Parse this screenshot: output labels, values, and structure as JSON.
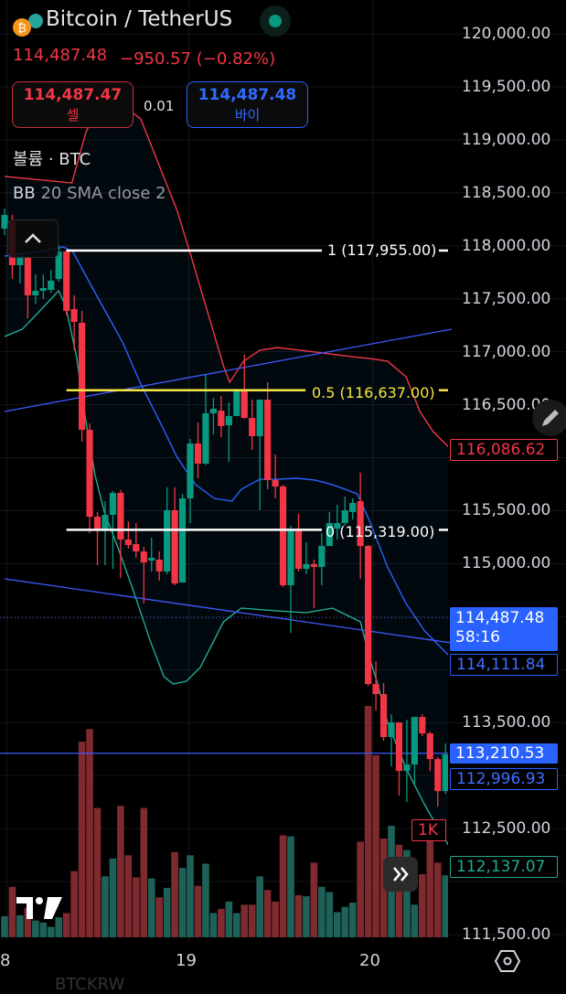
{
  "header": {
    "symbol_title": "Bitcoin / TetherUS",
    "last_price": "114,487.48",
    "change": "−950.57 (−0.82%)",
    "sell": {
      "price": "114,487.47",
      "label": "셀"
    },
    "spread": "0.01",
    "buy": {
      "price": "114,487.48",
      "label": "바이"
    },
    "market_status": "open",
    "icons": [
      "bitcoin-icon",
      "tether-icon",
      "market-open-dot-icon"
    ]
  },
  "legends": {
    "volume": "볼륨 · BTC",
    "bb_name": "BB",
    "bb_params": "20 SMA close 2"
  },
  "colors": {
    "up": "#089981",
    "down": "#f23645",
    "bb_upper": "#f23645",
    "bb_basis": "#2962ff",
    "bb_lower": "#22ab94",
    "trendline": "#3d5afe",
    "fib_1": "#ffffff",
    "fib_05": "#f5e642",
    "fib_0": "#ffffff",
    "last_price_bg": "#2962ff"
  },
  "chart_data": {
    "type": "candlestick",
    "y_axis": {
      "min": 111500,
      "max": 120000,
      "step": 500,
      "tick_labels": [
        "120,000.00",
        "119,500.00",
        "119,000.00",
        "118,500.00",
        "118,000.00",
        "117,500.00",
        "117,000.00",
        "116,500.00",
        "116,000.00",
        "115,500.00",
        "115,000.00",
        "114,500.00",
        "114,000.00",
        "113,500.00",
        "113,000.00",
        "112,500.00",
        "112,000.00",
        "111,500.00"
      ]
    },
    "x_axis": {
      "tick_labels": [
        {
          "label": "8",
          "index": 0.3
        },
        {
          "label": "19",
          "index": 23.8
        },
        {
          "label": "20",
          "index": 47.6
        }
      ]
    },
    "grid": true,
    "candles_ohlc": [
      [
        118162,
        118350,
        118100,
        118291
      ],
      [
        118231,
        118291,
        117687,
        117817
      ],
      [
        117817,
        117920,
        117644,
        117903
      ],
      [
        117886,
        117903,
        117316,
        117532
      ],
      [
        117532,
        117730,
        117454,
        117575
      ],
      [
        117575,
        117730,
        117497,
        117601
      ],
      [
        117584,
        117773,
        117558,
        117670
      ],
      [
        117687,
        118006,
        117661,
        117946
      ],
      [
        117946,
        117963,
        117342,
        117385
      ],
      [
        117402,
        117532,
        117014,
        117282
      ],
      [
        117273,
        117385,
        116151,
        116263
      ],
      [
        116263,
        116324,
        115288,
        115443
      ],
      [
        115443,
        115487,
        114986,
        115314
      ],
      [
        115314,
        115590,
        114986,
        115461
      ],
      [
        115461,
        115685,
        114951,
        115668
      ],
      [
        115668,
        115694,
        114865,
        115228
      ],
      [
        115228,
        115400,
        115141,
        115176
      ],
      [
        115184,
        115383,
        115055,
        115115
      ],
      [
        115115,
        115159,
        114624,
        115012
      ],
      [
        115029,
        115245,
        114926,
        115055
      ],
      [
        115038,
        115115,
        114839,
        114926
      ],
      [
        114926,
        115720,
        114900,
        115504
      ],
      [
        115504,
        115720,
        114796,
        114813
      ],
      [
        114822,
        115659,
        114822,
        115616
      ],
      [
        115616,
        116177,
        115383,
        116134
      ],
      [
        116134,
        116332,
        115806,
        115944
      ],
      [
        115944,
        116781,
        115930,
        116419
      ],
      [
        116419,
        116565,
        116220,
        116462
      ],
      [
        116444,
        116583,
        116194,
        116298
      ],
      [
        116306,
        116522,
        115961,
        116393
      ],
      [
        116393,
        116652,
        116393,
        116634
      ],
      [
        116634,
        116971,
        116367,
        116375
      ],
      [
        116375,
        116548,
        116073,
        116203
      ],
      [
        116203,
        116548,
        115504,
        116548
      ],
      [
        116548,
        116712,
        115702,
        115789
      ],
      [
        115789,
        116030,
        115616,
        115728
      ],
      [
        115728,
        115745,
        114779,
        114796
      ],
      [
        114796,
        115357,
        114347,
        115314
      ],
      [
        115314,
        115469,
        114926,
        114951
      ],
      [
        114951,
        115202,
        114900,
        114995
      ],
      [
        114995,
        115038,
        114580,
        114969
      ],
      [
        114969,
        115288,
        114796,
        115167
      ],
      [
        115167,
        115487,
        115167,
        115383
      ],
      [
        115330,
        115556,
        115228,
        115383
      ],
      [
        115383,
        115633,
        115357,
        115504
      ],
      [
        115487,
        115616,
        115417,
        115573
      ],
      [
        115590,
        115858,
        114857,
        115167
      ],
      [
        115167,
        115176,
        113847,
        113864
      ],
      [
        113864,
        114080,
        113614,
        113769
      ],
      [
        113769,
        113873,
        113329,
        113364
      ],
      [
        113364,
        113579,
        113087,
        113502
      ],
      [
        113502,
        113502,
        112811,
        113044
      ],
      [
        113044,
        113527,
        112751,
        113105
      ],
      [
        113105,
        113553,
        112923,
        113553
      ],
      [
        113553,
        113579,
        113372,
        113398
      ],
      [
        113398,
        113415,
        113044,
        113156
      ],
      [
        113156,
        113174,
        112708,
        112854
      ],
      [
        112854,
        113303,
        112828,
        113200
      ],
      [
        113200,
        113286,
        112984,
        113001
      ]
    ],
    "volume_k": [
      0.2,
      0.48,
      0.21,
      0.28,
      0.16,
      0.14,
      0.1,
      0.19,
      0.23,
      0.63,
      1.86,
      1.98,
      1.23,
      0.58,
      0.75,
      1.25,
      0.78,
      0.57,
      1.23,
      0.56,
      0.38,
      0.47,
      0.81,
      0.66,
      0.78,
      0.49,
      0.7,
      0.23,
      0.27,
      0.34,
      0.23,
      0.31,
      0.31,
      0.58,
      0.45,
      0.34,
      0.97,
      0.96,
      0.4,
      0.39,
      0.71,
      0.48,
      0.43,
      0.24,
      0.29,
      0.33,
      0.91,
      2.2,
      1.73,
      0.94,
      1.06,
      0.88,
      0.83,
      0.31,
      0.6,
      1.07,
      0.71,
      0.59,
      0.98
    ],
    "volume_scale_label": "1K",
    "bollinger": {
      "upper": [
        [
          0,
          118654
        ],
        [
          8.7,
          118593
        ],
        [
          10.5,
          119068
        ],
        [
          13,
          119456
        ],
        [
          17.6,
          119197
        ],
        [
          22.3,
          118334
        ],
        [
          24,
          117929
        ],
        [
          28.3,
          116867
        ],
        [
          29.1,
          116712
        ],
        [
          30.9,
          116911
        ],
        [
          33,
          117014
        ],
        [
          35.3,
          117040
        ],
        [
          40.1,
          116997
        ],
        [
          44.8,
          116954
        ],
        [
          47.2,
          116936
        ],
        [
          49.5,
          116911
        ],
        [
          51.9,
          116764
        ],
        [
          53.7,
          116436
        ],
        [
          55.4,
          116246
        ],
        [
          57.8,
          116073
        ]
      ],
      "basis": [
        [
          0,
          117903
        ],
        [
          4.6,
          117946
        ],
        [
          7.6,
          117989
        ],
        [
          8.8,
          117946
        ],
        [
          11.7,
          117558
        ],
        [
          15.3,
          117083
        ],
        [
          17.6,
          116695
        ],
        [
          20,
          116350
        ],
        [
          22.3,
          116004
        ],
        [
          24.7,
          115745
        ],
        [
          27.1,
          115616
        ],
        [
          29.4,
          115590
        ],
        [
          30.6,
          115702
        ],
        [
          33,
          115797
        ],
        [
          35.3,
          115797
        ],
        [
          37.7,
          115806
        ],
        [
          40.1,
          115789
        ],
        [
          42.4,
          115745
        ],
        [
          45.6,
          115659
        ],
        [
          47.2,
          115400
        ],
        [
          49.5,
          114969
        ],
        [
          51.9,
          114624
        ],
        [
          54.3,
          114365
        ],
        [
          57.8,
          114106
        ]
      ],
      "lower": [
        [
          0,
          117143
        ],
        [
          2.3,
          117213
        ],
        [
          4.0,
          117342
        ],
        [
          7,
          117575
        ],
        [
          7.9,
          117428
        ],
        [
          9.3,
          116954
        ],
        [
          10.5,
          116350
        ],
        [
          11.7,
          115832
        ],
        [
          12.9,
          115487
        ],
        [
          14.7,
          115141
        ],
        [
          16.4,
          114796
        ],
        [
          18.8,
          114278
        ],
        [
          20.6,
          113933
        ],
        [
          21.8,
          113864
        ],
        [
          23.5,
          113890
        ],
        [
          25.3,
          114020
        ],
        [
          28.3,
          114451
        ],
        [
          30.6,
          114580
        ],
        [
          35.3,
          114554
        ],
        [
          38.9,
          114537
        ],
        [
          42.4,
          114580
        ],
        [
          46,
          114451
        ],
        [
          47.2,
          114106
        ],
        [
          48.3,
          113847
        ],
        [
          49.5,
          113502
        ],
        [
          51.9,
          113070
        ],
        [
          54.3,
          112725
        ],
        [
          56,
          112509
        ],
        [
          57.8,
          112293
        ]
      ]
    },
    "trendlines": [
      [
        [
          0,
          116436
        ],
        [
          57.8,
          117213
        ]
      ],
      [
        [
          0,
          114857
        ],
        [
          57.8,
          114252
        ]
      ]
    ],
    "horizontal_line": 113210.53,
    "fib": [
      {
        "label": "1 (117,955.00)",
        "price": 117955,
        "from_index": 8,
        "to_end": true
      },
      {
        "label": "0.5 (116,637.00)",
        "price": 116637,
        "from_index": 8,
        "to_index": 38.9
      },
      {
        "label": "0 (115,319.00)",
        "price": 115319,
        "from_index": 8,
        "to_end": true
      }
    ],
    "current_price": 114487.48
  },
  "price_labels": {
    "bb_upper": "116,086.62",
    "last": "114,487.48",
    "countdown": "58:16",
    "basis": "114,111.84",
    "hline": "113,210.53",
    "trend": "112,996.93",
    "vol_scale": "1K",
    "bb_lower": "112,137.07"
  },
  "footer": {
    "faint_symbol": "BTCKRW"
  }
}
